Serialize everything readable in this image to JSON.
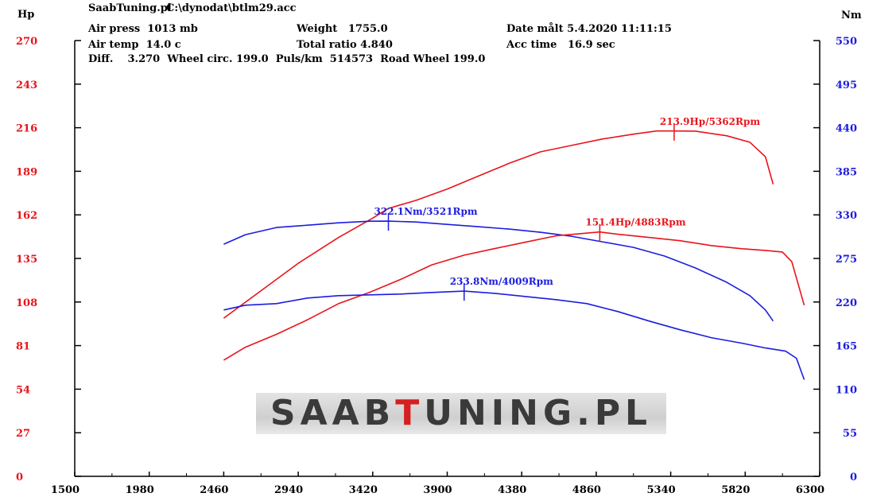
{
  "header": {
    "app": "SaabTuning.pl",
    "file": "C:\\dynodat\\btlm29.acc",
    "air_press": "Air press  1013 mb",
    "air_temp": "Air temp  14.0 c",
    "weight": "Weight   1755.0",
    "total_ratio": "Total ratio 4.840",
    "date": "Date målt 5.4.2020 11:11:15",
    "acc_time": "Acc time   16.9 sec",
    "diff_line": "Diff.    3.270  Wheel circ. 199.0  Puls/km  514573  Road Wheel 199.0"
  },
  "watermark": {
    "prefix": "SAAB",
    "highlight": "T",
    "suffix": "UNING.PL"
  },
  "colors": {
    "hp": "#e8141a",
    "nm": "#1c1ce0",
    "axis": "#000000"
  },
  "chart_data": {
    "type": "line",
    "x_ticks": [
      1500,
      1980,
      2460,
      2940,
      3420,
      3900,
      4380,
      4860,
      5340,
      5820,
      6300
    ],
    "xlim": [
      1500,
      6300
    ],
    "left_axis": {
      "label": "Hp",
      "ylim": [
        0,
        270
      ],
      "ticks": [
        0,
        27,
        54,
        81,
        108,
        135,
        162,
        189,
        216,
        243,
        270
      ]
    },
    "right_axis": {
      "label": "Nm",
      "ylim": [
        0,
        550
      ],
      "ticks": [
        0,
        55,
        110,
        165,
        220,
        275,
        330,
        385,
        440,
        495,
        550
      ]
    },
    "grid": false,
    "series": [
      {
        "unit": "Hp",
        "axis": "left",
        "color": "#e8141a",
        "x": [
          2460,
          2700,
          2940,
          3200,
          3420,
          3521,
          3700,
          3900,
          4100,
          4300,
          4500,
          4700,
          4900,
          5100,
          5250,
          5362,
          5500,
          5700,
          5850,
          5950,
          6000
        ],
        "y": [
          98,
          115,
          132,
          148,
          160,
          166,
          171,
          178,
          186,
          194,
          201,
          205,
          209,
          212,
          214,
          214,
          213.9,
          211,
          207,
          198,
          181
        ]
      },
      {
        "unit": "Nm",
        "axis": "right",
        "color": "#1c1ce0",
        "x": [
          2460,
          2600,
          2800,
          3000,
          3200,
          3400,
          3521,
          3700,
          3900,
          4100,
          4300,
          4500,
          4700,
          4900,
          5100,
          5300,
          5500,
          5700,
          5850,
          5950,
          6000
        ],
        "y": [
          293,
          305,
          314,
          317,
          320,
          322,
          322.1,
          321,
          318,
          315,
          312,
          308,
          303,
          296,
          289,
          278,
          263,
          245,
          228,
          210,
          196
        ]
      },
      {
        "unit": "Hp",
        "axis": "left",
        "color": "#e8141a",
        "x": [
          2460,
          2600,
          2800,
          3000,
          3200,
          3400,
          3600,
          3800,
          4009,
          4200,
          4400,
          4600,
          4883,
          5000,
          5200,
          5400,
          5600,
          5800,
          5950,
          6060,
          6120,
          6200
        ],
        "y": [
          72,
          80,
          88,
          97,
          107,
          114,
          122,
          131,
          137,
          141,
          145,
          149,
          151.4,
          150,
          148,
          146,
          143,
          141,
          140,
          139,
          133,
          106
        ]
      },
      {
        "unit": "Nm",
        "axis": "right",
        "color": "#1c1ce0",
        "x": [
          2460,
          2600,
          2800,
          3000,
          3200,
          3400,
          3600,
          3800,
          4009,
          4200,
          4400,
          4600,
          4800,
          5000,
          5200,
          5400,
          5600,
          5800,
          5950,
          6080,
          6150,
          6200
        ],
        "y": [
          210,
          216,
          218,
          225,
          228,
          229,
          230,
          232,
          233.8,
          231,
          227,
          223,
          218,
          208,
          196,
          185,
          175,
          168,
          162,
          158,
          149,
          122
        ]
      }
    ],
    "annotations": [
      {
        "text": "213.9Hp/5362Rpm",
        "color": "#e8141a",
        "x": 5362,
        "y": 213.9,
        "axis": "left"
      },
      {
        "text": "322.1Nm/3521Rpm",
        "color": "#1c1ce0",
        "x": 3521,
        "y": 322.1,
        "axis": "right"
      },
      {
        "text": "151.4Hp/4883Rpm",
        "color": "#e8141a",
        "x": 4883,
        "y": 151.4,
        "axis": "left"
      },
      {
        "text": "233.8Nm/4009Rpm",
        "color": "#1c1ce0",
        "x": 4009,
        "y": 233.8,
        "axis": "right"
      }
    ]
  }
}
